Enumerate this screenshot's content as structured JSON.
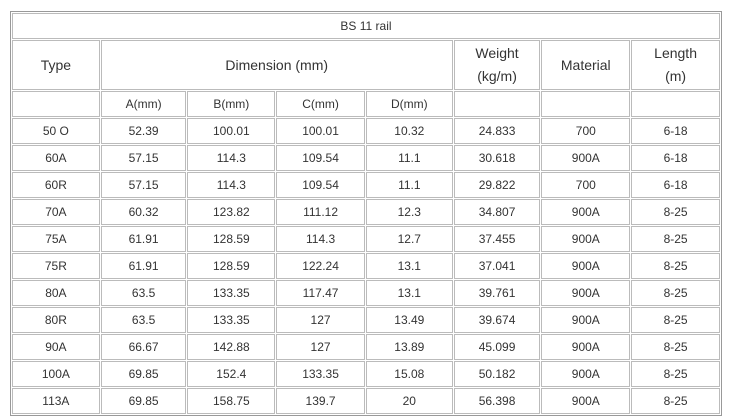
{
  "title": "BS 11 rail",
  "header": {
    "type": "Type",
    "dimension": "Dimension (mm)",
    "weight": [
      "Weight",
      "(kg/m)"
    ],
    "material": "Material",
    "length": [
      "Length",
      "(m)"
    ]
  },
  "subheader": [
    "A(mm)",
    "B(mm)",
    "C(mm)",
    "D(mm)"
  ],
  "rows": [
    [
      "50 O",
      "52.39",
      "100.01",
      "100.01",
      "10.32",
      "24.833",
      "700",
      "6-18"
    ],
    [
      "60A",
      "57.15",
      "114.3",
      "109.54",
      "11.1",
      "30.618",
      "900A",
      "6-18"
    ],
    [
      "60R",
      "57.15",
      "114.3",
      "109.54",
      "11.1",
      "29.822",
      "700",
      "6-18"
    ],
    [
      "70A",
      "60.32",
      "123.82",
      "111.12",
      "12.3",
      "34.807",
      "900A",
      "8-25"
    ],
    [
      "75A",
      "61.91",
      "128.59",
      "114.3",
      "12.7",
      "37.455",
      "900A",
      "8-25"
    ],
    [
      "75R",
      "61.91",
      "128.59",
      "122.24",
      "13.1",
      "37.041",
      "900A",
      "8-25"
    ],
    [
      "80A",
      "63.5",
      "133.35",
      "117.47",
      "13.1",
      "39.761",
      "900A",
      "8-25"
    ],
    [
      "80R",
      "63.5",
      "133.35",
      "127",
      "13.49",
      "39.674",
      "900A",
      "8-25"
    ],
    [
      "90A",
      "66.67",
      "142.88",
      "127",
      "13.89",
      "45.099",
      "900A",
      "8-25"
    ],
    [
      "100A",
      "69.85",
      "152.4",
      "133.35",
      "15.08",
      "50.182",
      "900A",
      "8-25"
    ],
    [
      "113A",
      "69.85",
      "158.75",
      "139.7",
      "20",
      "56.398",
      "900A",
      "8-25"
    ]
  ]
}
